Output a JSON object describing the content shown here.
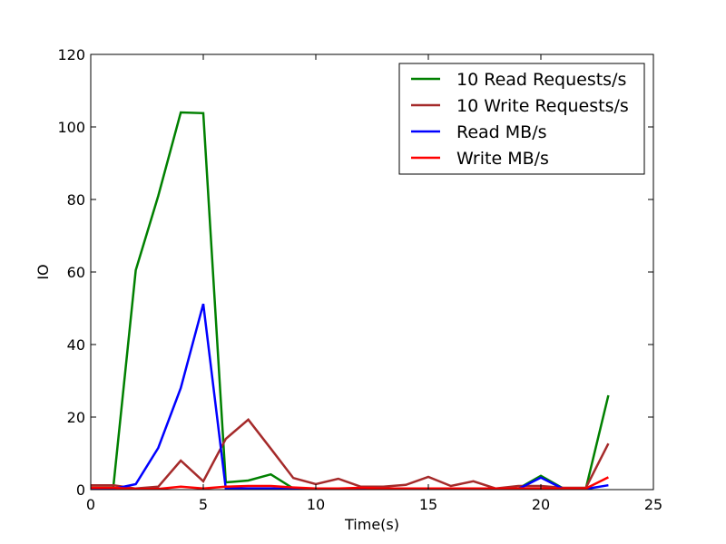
{
  "chart_data": {
    "type": "line",
    "title": "",
    "xlabel": "Time(s)",
    "ylabel": "IO",
    "xlim": [
      0,
      25
    ],
    "ylim": [
      0,
      120
    ],
    "xticks": [
      0,
      5,
      10,
      15,
      20,
      25
    ],
    "yticks": [
      0,
      20,
      40,
      60,
      80,
      100,
      120
    ],
    "grid": false,
    "legend_position": "top-right",
    "x": [
      0,
      1,
      2,
      3,
      4,
      5,
      6,
      7,
      8,
      9,
      10,
      11,
      12,
      13,
      14,
      15,
      16,
      17,
      18,
      19,
      20,
      21,
      22,
      23
    ],
    "series": [
      {
        "name": "10 Read Requests/s",
        "color": "#008000",
        "values": [
          0.5,
          0.5,
          60.5,
          81,
          104,
          103.8,
          2,
          2.5,
          4.2,
          0.3,
          0.3,
          0.3,
          0.3,
          0.3,
          0.3,
          0.3,
          0.3,
          0.3,
          0.3,
          0.3,
          3.8,
          0.3,
          0.3,
          26
        ]
      },
      {
        "name": "10 Write Requests/s",
        "color": "#a52a2a",
        "values": [
          1.2,
          1.2,
          0.3,
          0.8,
          8,
          2.3,
          14,
          19.3,
          11.3,
          3.2,
          1.5,
          3,
          0.8,
          0.8,
          1.3,
          3.5,
          1,
          2.3,
          0.3,
          1,
          1,
          0.5,
          0.5,
          12.7
        ]
      },
      {
        "name": "Read MB/s",
        "color": "#0000ff",
        "values": [
          0.2,
          0.2,
          1.5,
          11.5,
          28,
          51.2,
          0.3,
          0.3,
          0.3,
          0.2,
          0.2,
          0.2,
          0.2,
          0.2,
          0.2,
          0.2,
          0.2,
          0.2,
          0.2,
          0.2,
          3.3,
          0.2,
          0.2,
          1.2
        ]
      },
      {
        "name": "Write MB/s",
        "color": "#ff0000",
        "values": [
          0.5,
          0.5,
          0.2,
          0.2,
          0.8,
          0.3,
          0.8,
          1,
          1,
          0.6,
          0.3,
          0.3,
          0.5,
          0.3,
          0.3,
          0.3,
          0.3,
          0.3,
          0.3,
          0.3,
          0.3,
          0.3,
          0.3,
          3.4
        ]
      }
    ]
  }
}
